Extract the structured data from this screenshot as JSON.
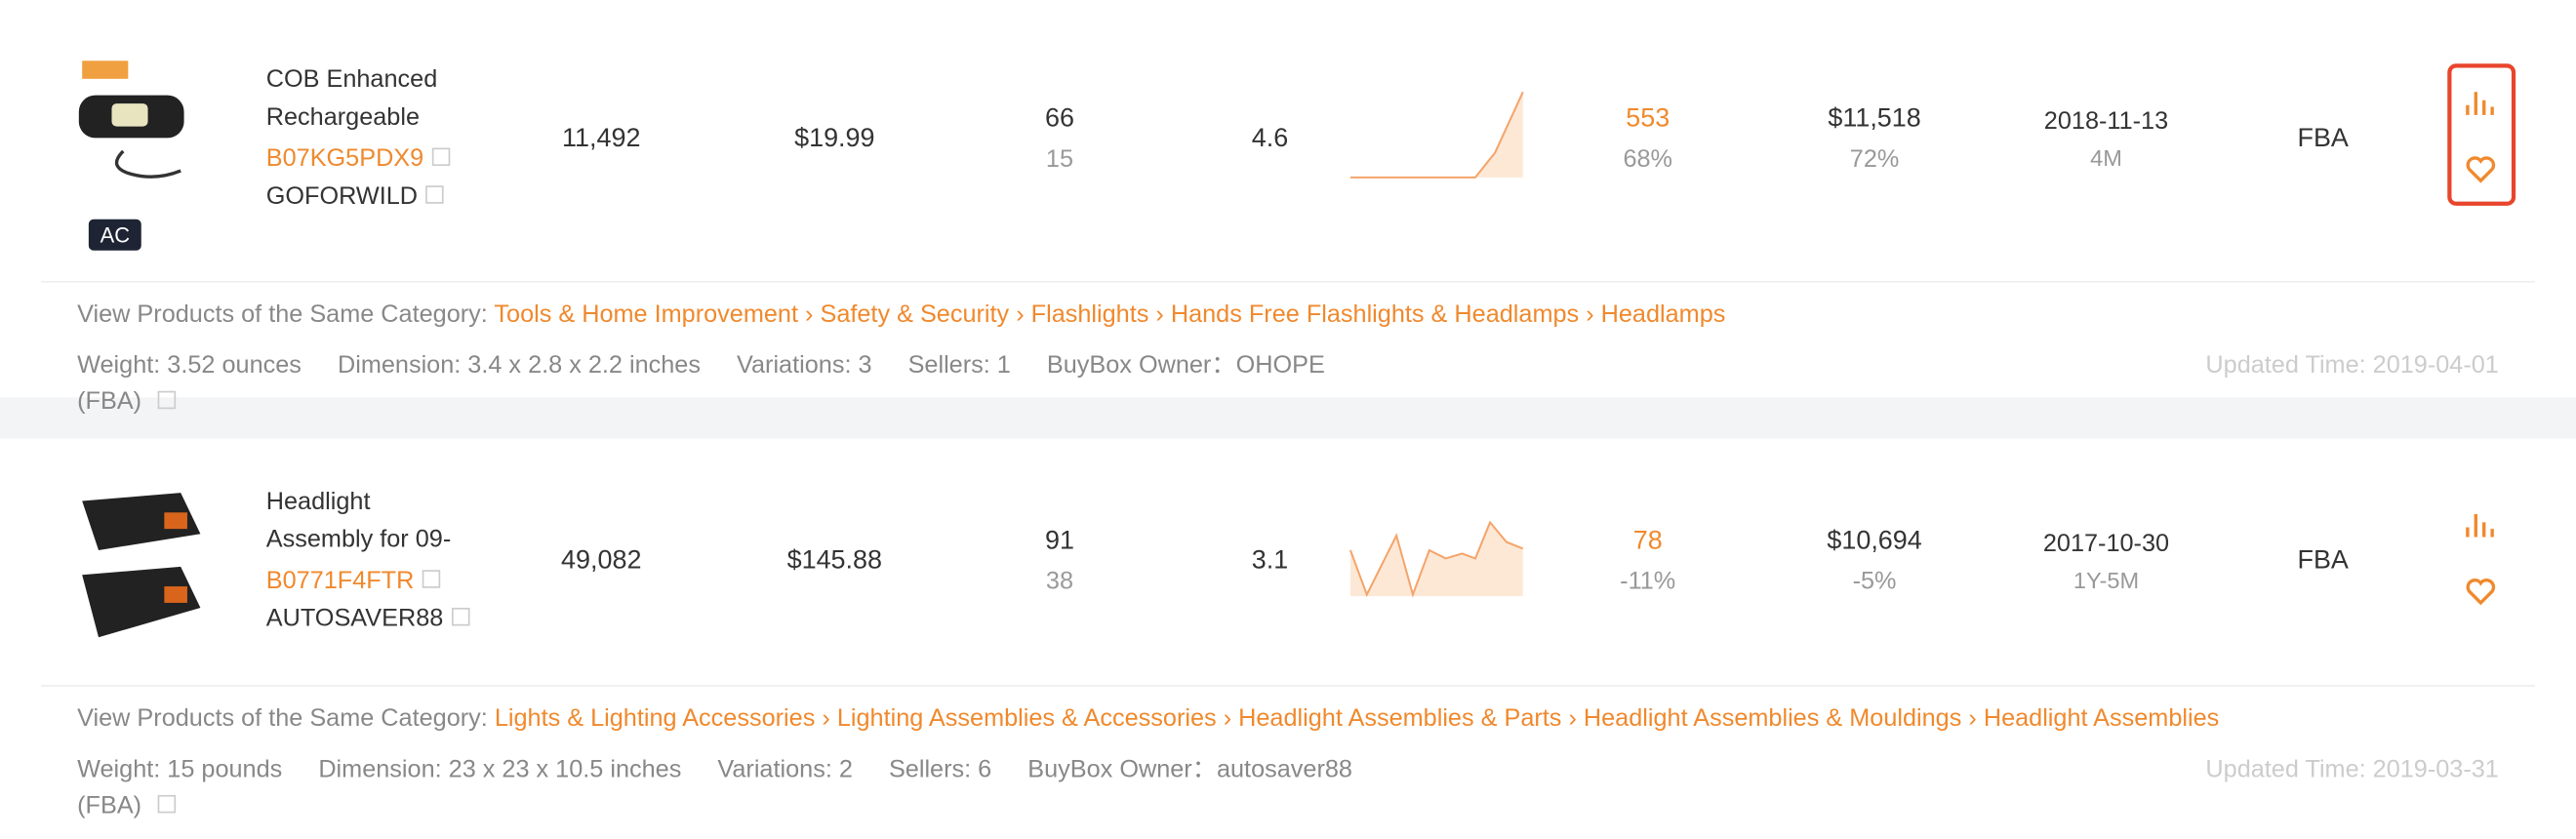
{
  "separator": "›",
  "category_label": "View Products of the Same Category:",
  "products": [
    {
      "title": [
        "COB Enhanced",
        "Rechargeable"
      ],
      "asin": "B07KG5PDX9",
      "brand": "GOFORWILD",
      "badge": "AC",
      "sales": "11,492",
      "price": "$19.99",
      "reviews": [
        "66",
        "15"
      ],
      "rating": "4.6",
      "orders": [
        "553",
        "68%"
      ],
      "revenue": [
        "$11,518",
        "72%"
      ],
      "date": [
        "2018-11-13",
        "4M"
      ],
      "fulfillment": "FBA",
      "categories": [
        "Tools & Home Improvement",
        "Safety & Security",
        "Flashlights",
        "Hands Free Flashlights & Headlamps",
        "Headlamps"
      ],
      "details": [
        "Weight: 3.52 ounces",
        "Dimension: 3.4 x 2.8 x 2.2 inches",
        "Variations: 3",
        "Sellers: 1",
        "BuyBox Owner：OHOPE (FBA)"
      ],
      "updated": "Updated Time: 2019-04-01"
    },
    {
      "title": [
        "Headlight",
        "Assembly for 09-"
      ],
      "asin": "B0771F4FTR",
      "brand": "AUTOSAVER88",
      "sales": "49,082",
      "price": "$145.88",
      "reviews": [
        "91",
        "38"
      ],
      "rating": "3.1",
      "orders": [
        "78",
        "-11%"
      ],
      "revenue": [
        "$10,694",
        "-5%"
      ],
      "date": [
        "2017-10-30",
        "1Y-5M"
      ],
      "fulfillment": "FBA",
      "categories": [
        "Lights & Lighting Accessories",
        "Lighting Assemblies & Accessories",
        "Headlight Assemblies & Parts",
        "Headlight Assemblies & Mouldings",
        "Headlight Assemblies"
      ],
      "details": [
        "Weight: 15 pounds",
        "Dimension: 23 x 23 x 10.5 inches",
        "Variations: 2",
        "Sellers: 6",
        "BuyBox Owner：autosaver88 (FBA)"
      ],
      "updated": "Updated Time: 2019-03-31"
    }
  ]
}
